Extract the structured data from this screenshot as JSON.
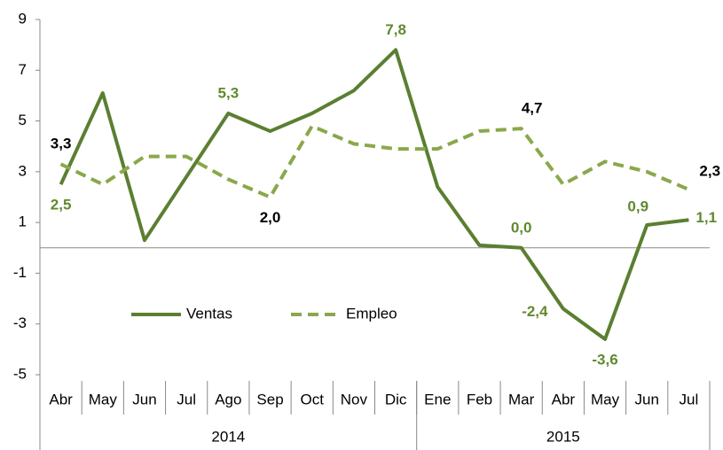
{
  "chart_data": {
    "type": "line",
    "categories": [
      "Abr",
      "May",
      "Jun",
      "Jul",
      "Ago",
      "Sep",
      "Oct",
      "Nov",
      "Dic",
      "Ene",
      "Feb",
      "Mar",
      "Abr",
      "May",
      "Jun",
      "Jul"
    ],
    "x_groups": [
      {
        "label": "2014",
        "span": 9
      },
      {
        "label": "2015",
        "span": 7
      }
    ],
    "series": [
      {
        "name": "Ventas",
        "color": "#5b7f31",
        "dash": false,
        "values": [
          2.5,
          6.1,
          0.3,
          2.8,
          5.3,
          4.6,
          5.3,
          6.2,
          7.8,
          2.4,
          0.1,
          0.0,
          -2.4,
          -3.6,
          0.9,
          1.1
        ],
        "value_labels": [
          "2,5",
          null,
          null,
          null,
          "5,3",
          null,
          null,
          null,
          "7,8",
          null,
          null,
          "0,0",
          "-2,4",
          "-3,6",
          "0,9",
          "1,1"
        ]
      },
      {
        "name": "Empleo",
        "color": "#89a84b",
        "dash": true,
        "values": [
          3.3,
          2.5,
          3.6,
          3.6,
          2.7,
          2.0,
          4.8,
          4.1,
          3.9,
          3.9,
          4.6,
          4.7,
          2.5,
          3.4,
          3.0,
          2.3
        ],
        "value_labels": [
          "3,3",
          null,
          null,
          null,
          null,
          "2,0",
          null,
          null,
          null,
          null,
          null,
          "4,7",
          null,
          null,
          null,
          "2,3"
        ]
      }
    ],
    "ylim": [
      -5,
      9
    ],
    "yticks": [
      -5,
      -3,
      -1,
      1,
      3,
      5,
      7,
      9
    ]
  }
}
